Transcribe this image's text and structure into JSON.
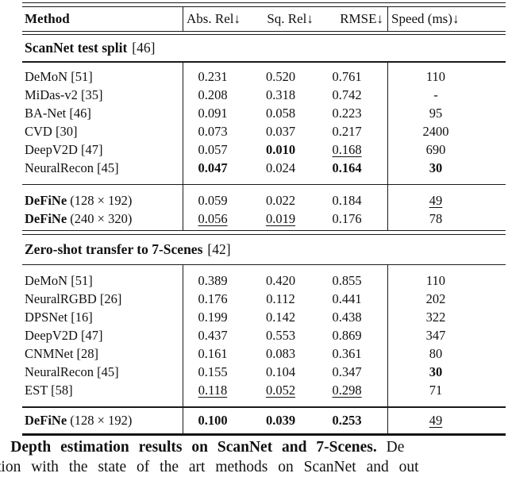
{
  "header": {
    "method": "Method",
    "metrics": [
      "Abs. Rel↓",
      "Sq. Rel↓",
      "RMSE↓"
    ],
    "speed": "Speed (ms)↓"
  },
  "sections": [
    {
      "title": "ScanNet test split",
      "ref": "[46]"
    },
    {
      "title": "Zero-shot transfer to 7-Scenes",
      "ref": "[42]"
    }
  ],
  "groups": {
    "scannet_main": [
      {
        "name": "DeMoN",
        "suffix": " [51]",
        "bold": false,
        "cells": [
          [
            "0.231",
            "n"
          ],
          [
            "0.520",
            "n"
          ],
          [
            "0.761",
            "n"
          ],
          [
            "110",
            "n"
          ]
        ]
      },
      {
        "name": "MiDas-v2",
        "suffix": " [35]",
        "bold": false,
        "cells": [
          [
            "0.208",
            "n"
          ],
          [
            "0.318",
            "n"
          ],
          [
            "0.742",
            "n"
          ],
          [
            "-",
            "n"
          ]
        ]
      },
      {
        "name": "BA-Net",
        "suffix": " [46]",
        "bold": false,
        "cells": [
          [
            "0.091",
            "n"
          ],
          [
            "0.058",
            "n"
          ],
          [
            "0.223",
            "n"
          ],
          [
            "95",
            "n"
          ]
        ]
      },
      {
        "name": "CVD",
        "suffix": " [30]",
        "bold": false,
        "cells": [
          [
            "0.073",
            "n"
          ],
          [
            "0.037",
            "n"
          ],
          [
            "0.217",
            "n"
          ],
          [
            "2400",
            "n"
          ]
        ]
      },
      {
        "name": "DeepV2D",
        "suffix": " [47]",
        "bold": false,
        "cells": [
          [
            "0.057",
            "n"
          ],
          [
            "0.010",
            "b"
          ],
          [
            "0.168",
            "u"
          ],
          [
            "690",
            "n"
          ]
        ]
      },
      {
        "name": "NeuralRecon",
        "suffix": " [45]",
        "bold": false,
        "cells": [
          [
            "0.047",
            "b"
          ],
          [
            "0.024",
            "n"
          ],
          [
            "0.164",
            "b"
          ],
          [
            "30",
            "b"
          ]
        ]
      }
    ],
    "scannet_define": [
      {
        "name": "DeFiNe",
        "suffix": " (128 × 192)",
        "bold": true,
        "cells": [
          [
            "0.059",
            "n"
          ],
          [
            "0.022",
            "n"
          ],
          [
            "0.184",
            "n"
          ],
          [
            "49",
            "u"
          ]
        ]
      },
      {
        "name": "DeFiNe",
        "suffix": " (240 × 320)",
        "bold": true,
        "cells": [
          [
            "0.056",
            "u"
          ],
          [
            "0.019",
            "u"
          ],
          [
            "0.176",
            "n"
          ],
          [
            "78",
            "n"
          ]
        ]
      }
    ],
    "sevenscenes_main": [
      {
        "name": "DeMoN",
        "suffix": " [51]",
        "bold": false,
        "cells": [
          [
            "0.389",
            "n"
          ],
          [
            "0.420",
            "n"
          ],
          [
            "0.855",
            "n"
          ],
          [
            "110",
            "n"
          ]
        ]
      },
      {
        "name": "NeuralRGBD",
        "suffix": " [26]",
        "bold": false,
        "cells": [
          [
            "0.176",
            "n"
          ],
          [
            "0.112",
            "n"
          ],
          [
            "0.441",
            "n"
          ],
          [
            "202",
            "n"
          ]
        ]
      },
      {
        "name": "DPSNet",
        "suffix": " [16]",
        "bold": false,
        "cells": [
          [
            "0.199",
            "n"
          ],
          [
            "0.142",
            "n"
          ],
          [
            "0.438",
            "n"
          ],
          [
            "322",
            "n"
          ]
        ]
      },
      {
        "name": "DeepV2D",
        "suffix": " [47]",
        "bold": false,
        "cells": [
          [
            "0.437",
            "n"
          ],
          [
            "0.553",
            "n"
          ],
          [
            "0.869",
            "n"
          ],
          [
            "347",
            "n"
          ]
        ]
      },
      {
        "name": "CNMNet",
        "suffix": " [28]",
        "bold": false,
        "cells": [
          [
            "0.161",
            "n"
          ],
          [
            "0.083",
            "n"
          ],
          [
            "0.361",
            "n"
          ],
          [
            "80",
            "n"
          ]
        ]
      },
      {
        "name": "NeuralRecon",
        "suffix": " [45]",
        "bold": false,
        "cells": [
          [
            "0.155",
            "n"
          ],
          [
            "0.104",
            "n"
          ],
          [
            "0.347",
            "n"
          ],
          [
            "30",
            "b"
          ]
        ]
      },
      {
        "name": "EST",
        "suffix": " [58]",
        "bold": false,
        "cells": [
          [
            "0.118",
            "u"
          ],
          [
            "0.052",
            "u"
          ],
          [
            "0.298",
            "u"
          ],
          [
            "71",
            "n"
          ]
        ]
      }
    ],
    "sevenscenes_define": [
      {
        "name": "DeFiNe",
        "suffix": " (128 × 192)",
        "bold": true,
        "cells": [
          [
            "0.100",
            "b"
          ],
          [
            "0.039",
            "b"
          ],
          [
            "0.253",
            "b"
          ],
          [
            "49",
            "u"
          ]
        ]
      }
    ]
  },
  "caption": {
    "prefix": ": ",
    "bold": "Depth estimation results on ScanNet and 7-Scenes.",
    "rest": " De",
    "line2": "tion with the state of the art methods on ScanNet and out"
  }
}
